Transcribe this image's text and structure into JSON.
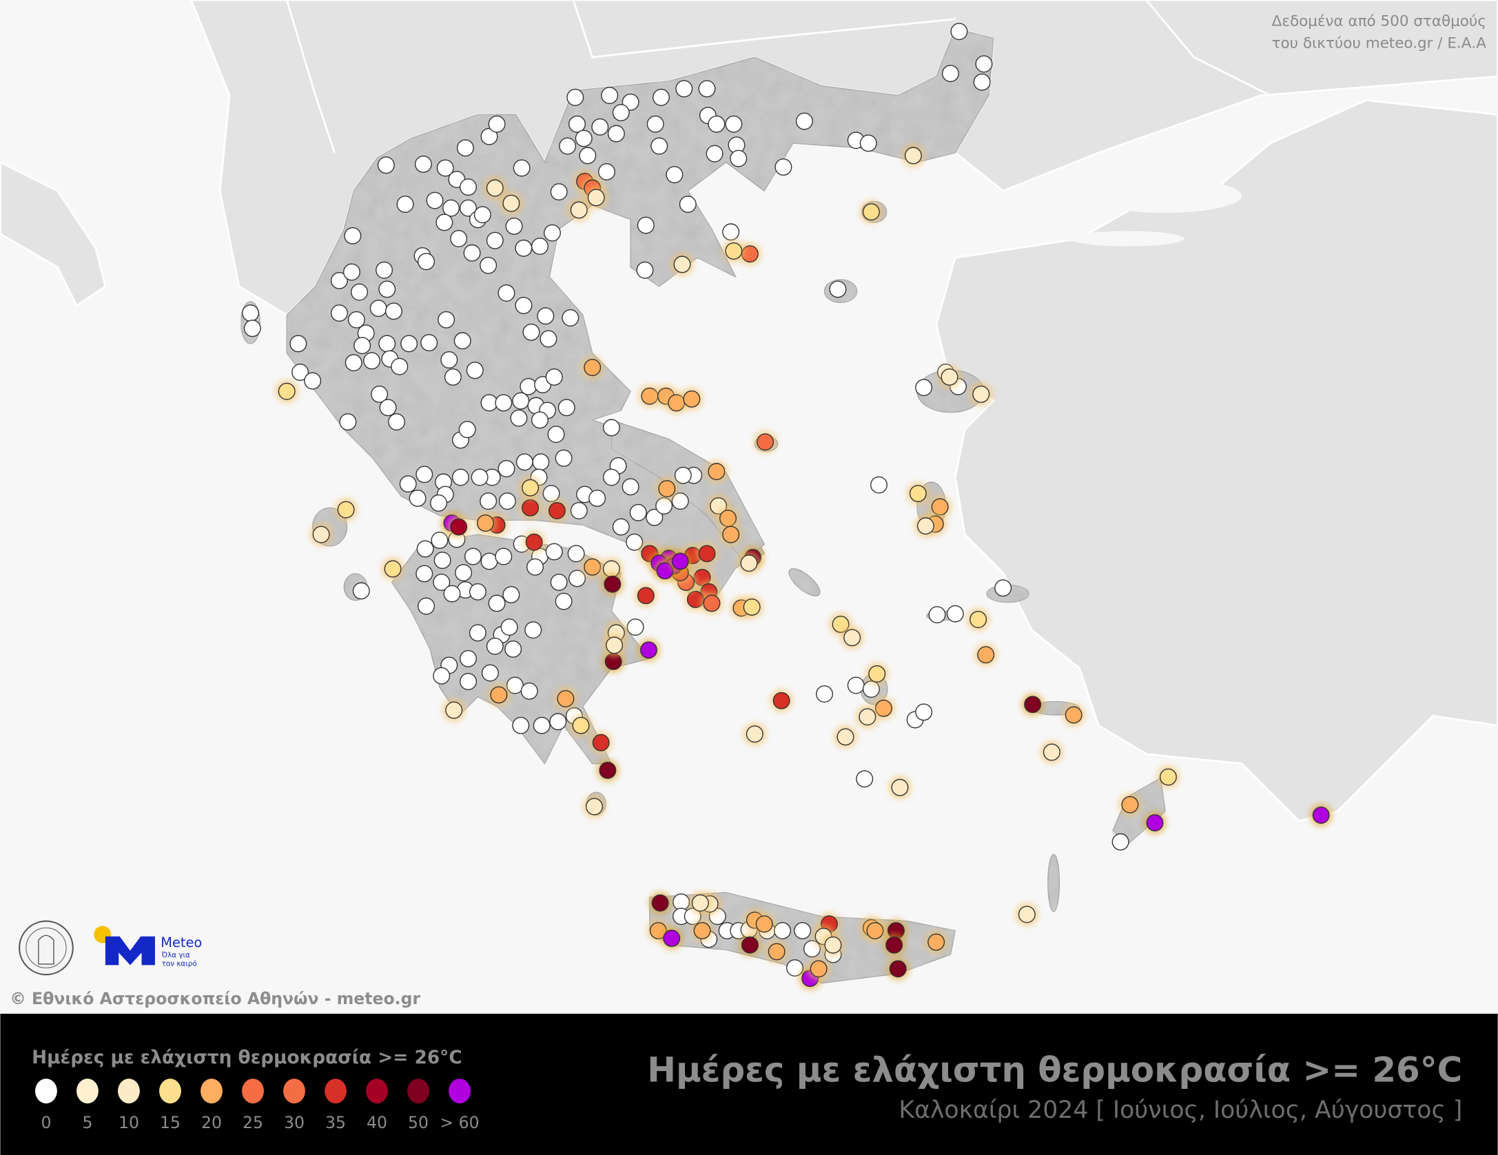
{
  "map": {
    "source_note_line1": "Δεδομένα από 500 σταθμούς",
    "source_note_line2": "του δικτύου meteo.gr / Ε.Α.Α",
    "copyright": "© Εθνικό Αστεροσκοπείο Αθηνών - meteo.gr",
    "sea_color": "#f7f7f7",
    "foreign_land_color": "#e3e3e3",
    "greece_land_color": "#bdbdbd"
  },
  "logos": {
    "observatory_seal_text": "ΕΘΝΙΚΟΝ ΑΣΤΕΡΟΣΚΟΠΕΙΟΝ ΑΘΗΝΩΝ · NATIONAL OBSERVATORY OF ATHENS",
    "meteo_name": "Meteo",
    "meteo_tagline_1": "Όλα για",
    "meteo_tagline_2": "τον καιρό",
    "meteo_blue": "#1428c8",
    "meteo_yellow": "#f5c000"
  },
  "header": {
    "title": "Ημέρες με ελάχιστη θερμοκρασία >= 26°C",
    "subtitle": "Καλοκαίρι 2024 [ Ιούνιος, Ιούλιος, Αύγουστος ]"
  },
  "legend": {
    "title": "Ημέρες με ελάχιστη θερμοκρασία >= 26°C",
    "items": [
      {
        "label": "0",
        "color": "#ffffff"
      },
      {
        "label": "5",
        "color": "#fff0d0"
      },
      {
        "label": "10",
        "color": "#fdebc8"
      },
      {
        "label": "15",
        "color": "#fedf8e"
      },
      {
        "label": "20",
        "color": "#fdae5f"
      },
      {
        "label": "25",
        "color": "#f46d43"
      },
      {
        "label": "30",
        "color": "#f36e45"
      },
      {
        "label": "35",
        "color": "#d73027"
      },
      {
        "label": "40",
        "color": "#a50026"
      },
      {
        "label": "50",
        "color": "#7f0020"
      },
      {
        "label": "> 60",
        "color": "#b000e0"
      }
    ]
  }
}
